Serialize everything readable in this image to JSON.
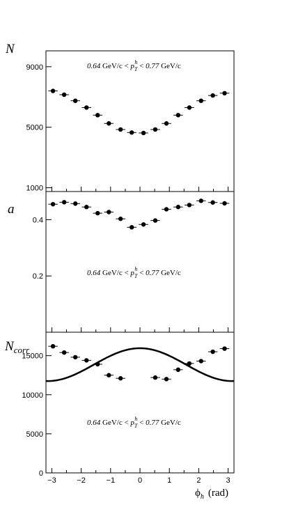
{
  "chart_data": [
    {
      "type": "scatter",
      "ylabel": "N",
      "annotation": "0.64 GeV/c < p_T^h < 0.77 GeV/c",
      "ylim": [
        750,
        10050
      ],
      "yticks": [
        1000,
        5000,
        9000
      ],
      "xlim": [
        -3.2,
        3.2
      ],
      "x": [
        -2.96,
        -2.58,
        -2.2,
        -1.82,
        -1.44,
        -1.06,
        -0.66,
        -0.28,
        0.12,
        0.52,
        0.9,
        1.3,
        1.68,
        2.08,
        2.48,
        2.88
      ],
      "xerr": 0.16,
      "series": [
        {
          "values": [
            7400,
            7150,
            6750,
            6300,
            5800,
            5250,
            4850,
            4650,
            4620,
            4850,
            5250,
            5800,
            6300,
            6750,
            7100,
            7250
          ]
        }
      ]
    },
    {
      "type": "scatter",
      "ylabel": "a",
      "annotation": "0.64 GeV/c < p_T^h < 0.77 GeV/c",
      "ylim": [
        0.0,
        0.5
      ],
      "yticks": [
        0.2,
        0.4
      ],
      "xlim": [
        -3.2,
        3.2
      ],
      "x": [
        -2.96,
        -2.58,
        -2.2,
        -1.82,
        -1.44,
        -1.06,
        -0.66,
        -0.28,
        0.12,
        0.52,
        0.9,
        1.3,
        1.68,
        2.08,
        2.48,
        2.88
      ],
      "xerr": 0.16,
      "series": [
        {
          "values": [
            0.455,
            0.462,
            0.457,
            0.445,
            0.423,
            0.427,
            0.403,
            0.373,
            0.383,
            0.397,
            0.437,
            0.445,
            0.452,
            0.467,
            0.461,
            0.458
          ]
        }
      ]
    },
    {
      "type": "scatter",
      "ylabel": "N_corr",
      "annotation": "0.64 GeV/c < p_T^h < 0.77 GeV/c",
      "ylim": [
        0,
        18000
      ],
      "yticks": [
        0,
        5000,
        10000,
        15000
      ],
      "xlim": [
        -3.2,
        3.2
      ],
      "xlabel": "ϕ_h (rad)",
      "xticks": [
        -3,
        -2,
        -1,
        0,
        1,
        2,
        3
      ],
      "x": [
        -2.96,
        -2.58,
        -2.2,
        -1.82,
        -1.44,
        -1.06,
        -0.66,
        0.52,
        0.9,
        1.3,
        1.68,
        2.08,
        2.48,
        2.88
      ],
      "xerr": 0.16,
      "series": [
        {
          "values": [
            16200,
            15400,
            14800,
            14400,
            13900,
            12500,
            12100,
            12200,
            12000,
            13200,
            14000,
            14300,
            15500,
            15900
          ]
        }
      ],
      "fit": {
        "type": "cosine",
        "mean": 13850,
        "amplitude": 2100
      }
    }
  ]
}
